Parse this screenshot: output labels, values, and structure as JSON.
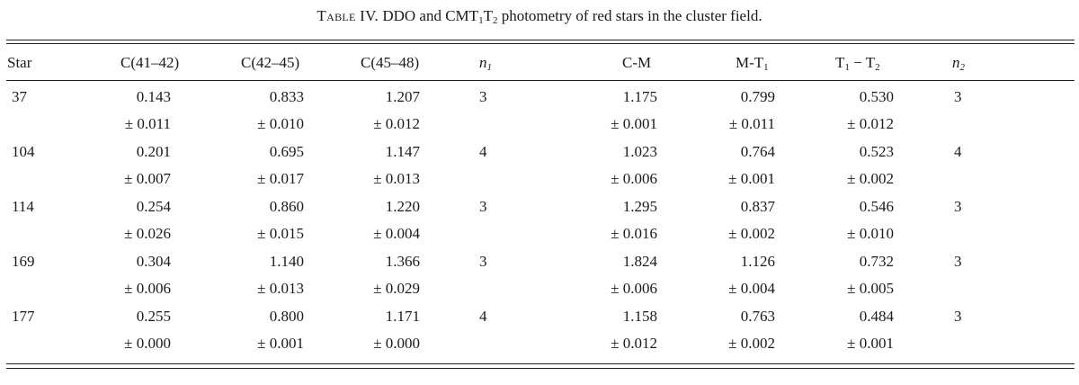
{
  "caption": {
    "label": "Table IV.",
    "text": "DDO and CMT₁T₂ photometry of red stars in the cluster field."
  },
  "columns": [
    "Star",
    "C(41–42)",
    "C(42–45)",
    "C(45–48)",
    "n₁",
    "C-M",
    "M-T₁",
    "T₁ − T₂",
    "n₂"
  ],
  "rows": [
    {
      "star": "37",
      "values": [
        "0.143",
        "0.833",
        "1.207",
        "3",
        "1.175",
        "0.799",
        "0.530",
        "3"
      ],
      "errors": [
        "± 0.011",
        "± 0.010",
        "± 0.012",
        "",
        "± 0.001",
        "± 0.011",
        "± 0.012",
        ""
      ]
    },
    {
      "star": "104",
      "values": [
        "0.201",
        "0.695",
        "1.147",
        "4",
        "1.023",
        "0.764",
        "0.523",
        "4"
      ],
      "errors": [
        "± 0.007",
        "± 0.017",
        "± 0.013",
        "",
        "± 0.006",
        "± 0.001",
        "± 0.002",
        ""
      ]
    },
    {
      "star": "114",
      "values": [
        "0.254",
        "0.860",
        "1.220",
        "3",
        "1.295",
        "0.837",
        "0.546",
        "3"
      ],
      "errors": [
        "± 0.026",
        "± 0.015",
        "± 0.004",
        "",
        "± 0.016",
        "± 0.002",
        "± 0.010",
        ""
      ]
    },
    {
      "star": "169",
      "values": [
        "0.304",
        "1.140",
        "1.366",
        "3",
        "1.824",
        "1.126",
        "0.732",
        "3"
      ],
      "errors": [
        "± 0.006",
        "± 0.013",
        "± 0.029",
        "",
        "± 0.006",
        "± 0.004",
        "± 0.005",
        ""
      ]
    },
    {
      "star": "177",
      "values": [
        "0.255",
        "0.800",
        "1.171",
        "4",
        "1.158",
        "0.763",
        "0.484",
        "3"
      ],
      "errors": [
        "± 0.000",
        "± 0.001",
        "± 0.000",
        "",
        "± 0.012",
        "± 0.002",
        "± 0.001",
        ""
      ]
    }
  ]
}
